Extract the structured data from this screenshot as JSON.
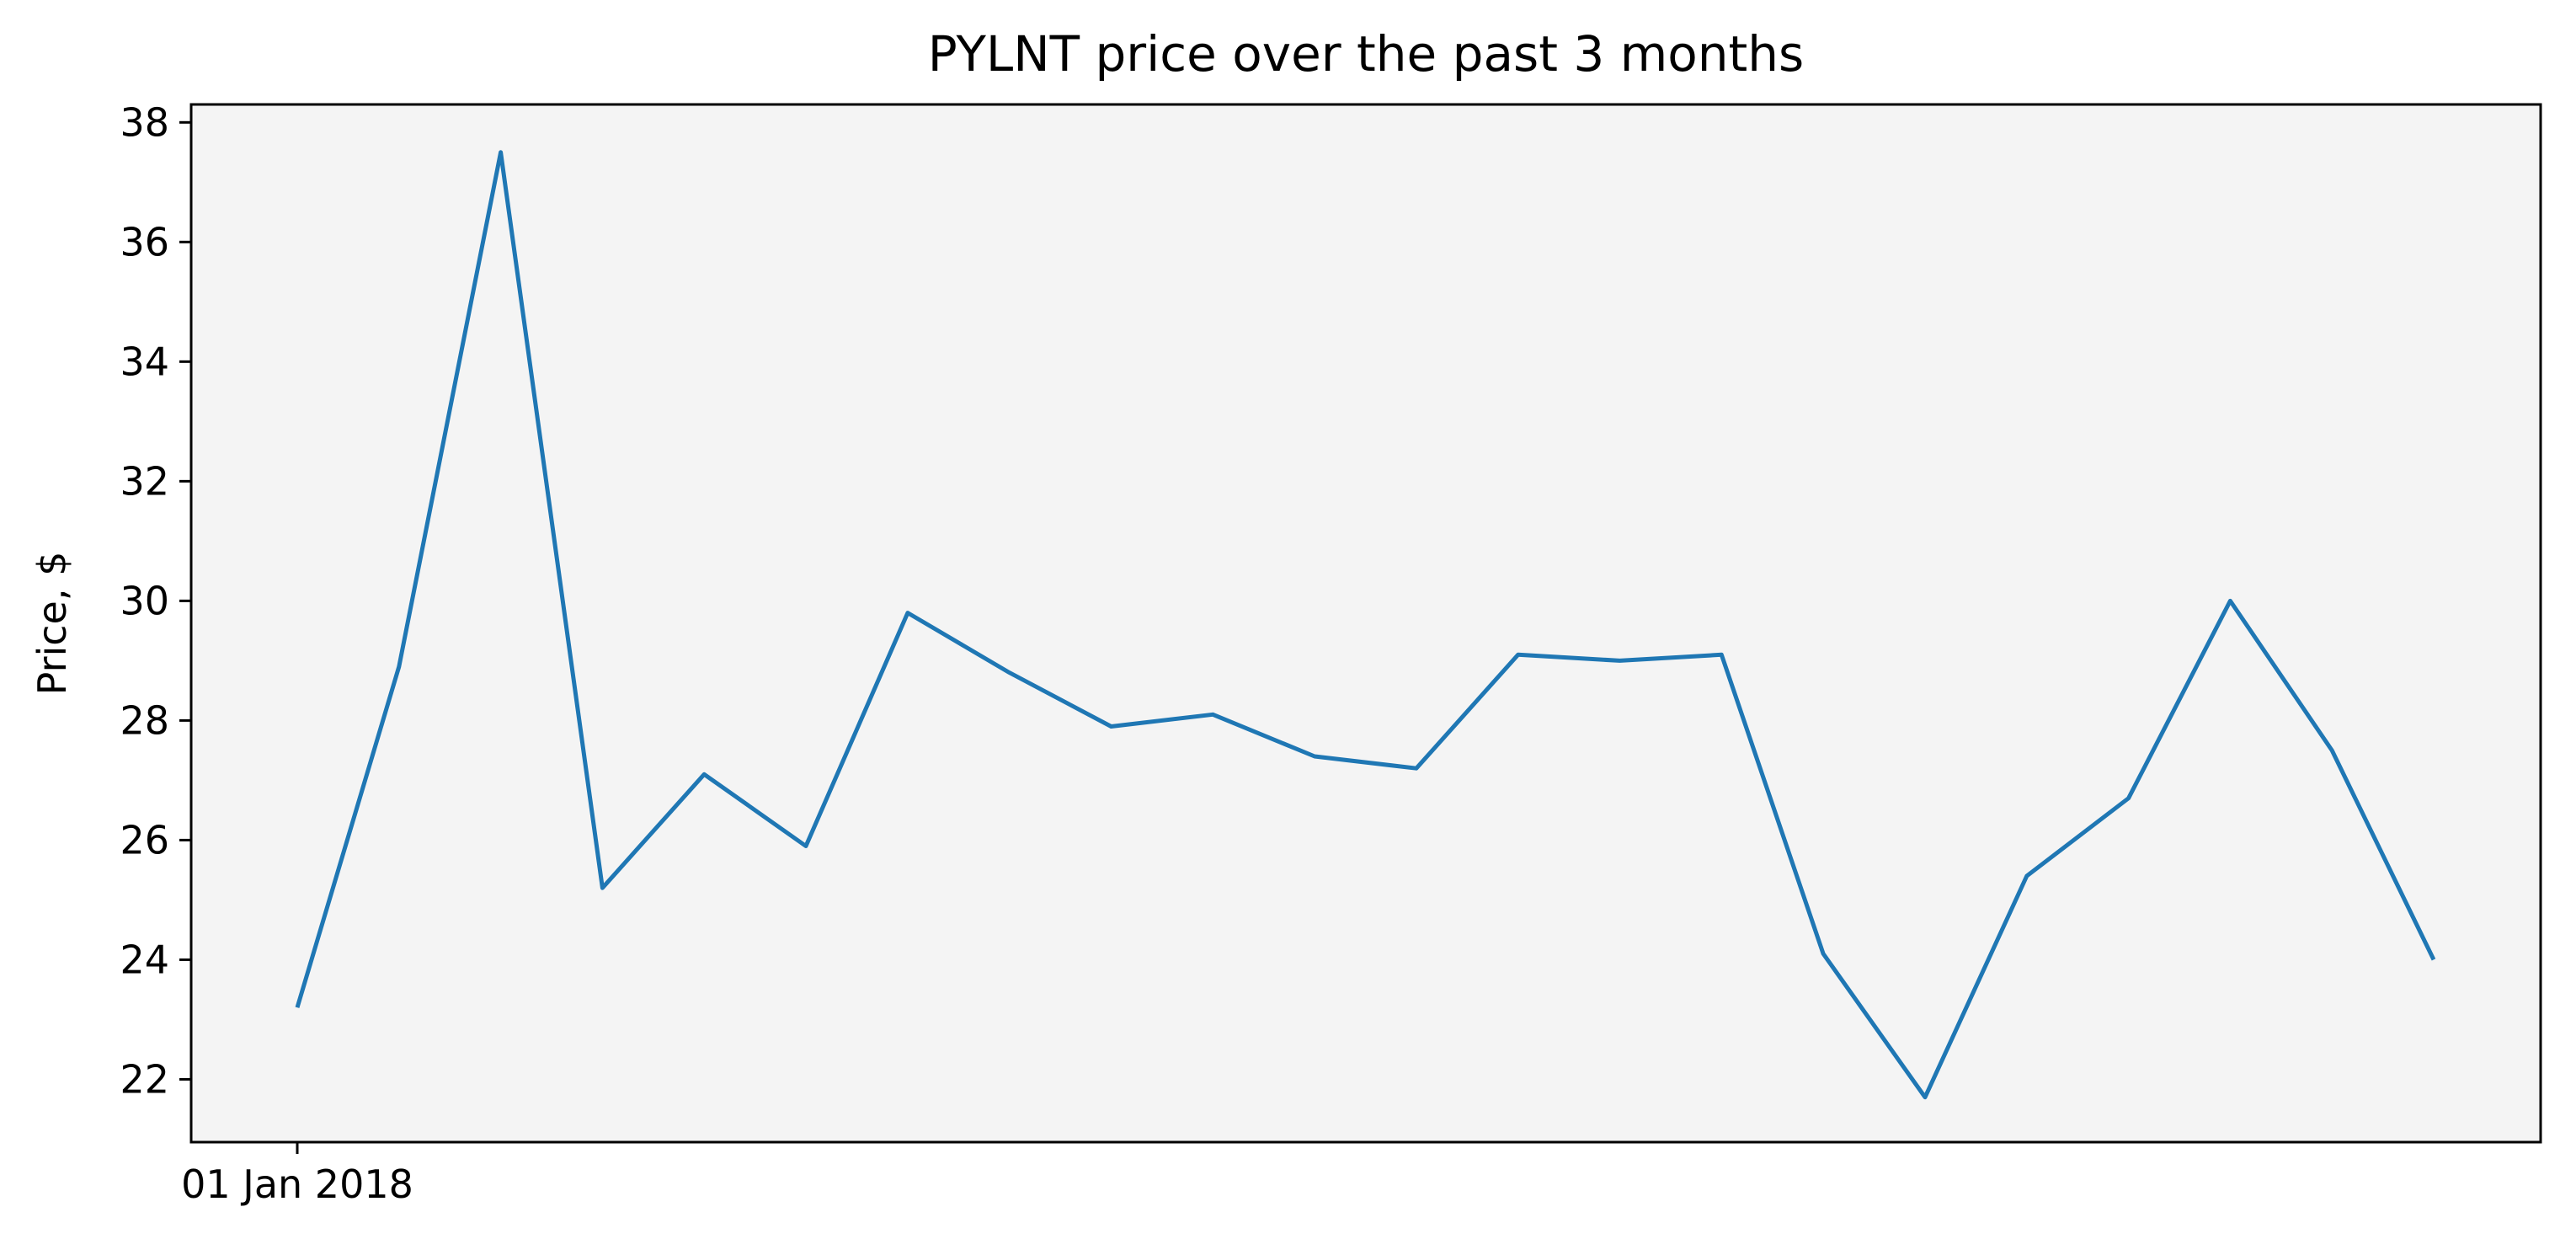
{
  "chart_data": {
    "type": "line",
    "title": "PYLNT price over the past 3 months",
    "xlabel": "",
    "ylabel": "Price, $",
    "x": [
      "01 Jan 2018",
      "",
      "",
      "",
      "",
      "",
      "",
      "",
      "",
      "",
      "",
      "",
      "",
      "",
      "",
      "",
      "",
      "",
      "",
      "",
      "",
      ""
    ],
    "x_tick_labels": [
      "01 Jan 2018"
    ],
    "ylim": [
      20.95,
      38.3
    ],
    "yticks": [
      22,
      24,
      26,
      28,
      30,
      32,
      34,
      36,
      38
    ],
    "grid": false,
    "series": [
      {
        "values": [
          23.2,
          28.9,
          37.5,
          25.2,
          27.1,
          25.9,
          29.8,
          28.8,
          27.9,
          28.1,
          27.4,
          27.2,
          29.1,
          29.0,
          29.1,
          24.1,
          21.7,
          25.4,
          26.7,
          30.0,
          27.5,
          24.0
        ]
      }
    ]
  },
  "colors": {
    "line": "#1f77b4",
    "plot_background": "#f4f4f4",
    "axes": "#000000"
  }
}
